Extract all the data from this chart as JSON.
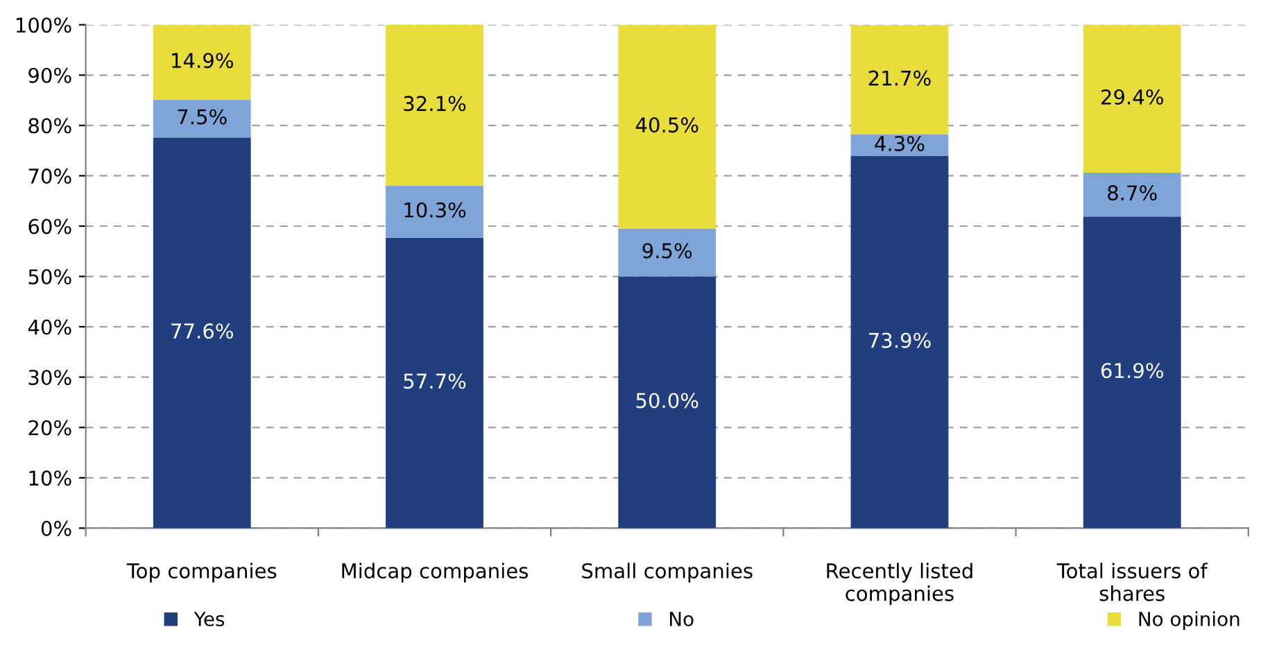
{
  "chart_data": {
    "type": "bar",
    "stacked": true,
    "categories": [
      "Top companies",
      "Midcap companies",
      "Small companies",
      "Recently listed\ncompanies",
      "Total issuers of\nshares"
    ],
    "series": [
      {
        "name": "Yes",
        "color": "#213f7f",
        "values": [
          77.6,
          57.7,
          50.0,
          73.9,
          61.9
        ],
        "value_labels": [
          "77.6%",
          "57.7%",
          "50.0%",
          "73.9%",
          "61.9%"
        ]
      },
      {
        "name": "No",
        "color": "#7fa5d8",
        "values": [
          7.5,
          10.3,
          9.5,
          4.3,
          8.7
        ],
        "value_labels": [
          "7.5%",
          "10.3%",
          "9.5%",
          "4.3%",
          "8.7%"
        ]
      },
      {
        "name": "No opinion",
        "color": "#e9dd3b",
        "values": [
          14.9,
          32.1,
          40.5,
          21.7,
          29.4
        ],
        "value_labels": [
          "14.9%",
          "32.1%",
          "40.5%",
          "21.7%",
          "29.4%"
        ]
      }
    ],
    "ylim": [
      0,
      100
    ],
    "yticks": [
      {
        "value": 0,
        "label": "0%"
      },
      {
        "value": 10,
        "label": "10%"
      },
      {
        "value": 20,
        "label": "20%"
      },
      {
        "value": 30,
        "label": "30%"
      },
      {
        "value": 40,
        "label": "40%"
      },
      {
        "value": 50,
        "label": "50%"
      },
      {
        "value": 60,
        "label": "60%"
      },
      {
        "value": 70,
        "label": "70%"
      },
      {
        "value": 80,
        "label": "80%"
      },
      {
        "value": 90,
        "label": "90%"
      },
      {
        "value": 100,
        "label": "100%"
      }
    ],
    "grid": "y",
    "legend": "bottom"
  }
}
